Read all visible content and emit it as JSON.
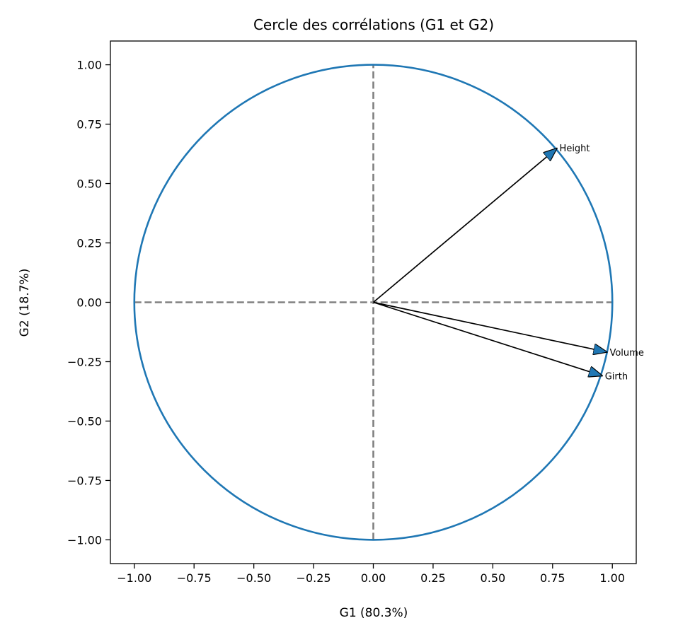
{
  "chart_data": {
    "type": "scatter",
    "title": "Cercle des corrélations (G1 et G2)",
    "xlabel": "G1 (80.3%)",
    "ylabel": "G2 (18.7%)",
    "xlim": [
      -1.1,
      1.1
    ],
    "ylim": [
      -1.1,
      1.1
    ],
    "xticks": [
      "−1.00",
      "−0.75",
      "−0.50",
      "−0.25",
      "0.00",
      "0.25",
      "0.50",
      "0.75",
      "1.00"
    ],
    "yticks": [
      "−1.00",
      "−0.75",
      "−0.50",
      "−0.25",
      "0.00",
      "0.25",
      "0.50",
      "0.75",
      "1.00"
    ],
    "tick_values": [
      -1.0,
      -0.75,
      -0.5,
      -0.25,
      0.0,
      0.25,
      0.5,
      0.75,
      1.0
    ],
    "circle": {
      "center": [
        0,
        0
      ],
      "radius": 1.0,
      "color": "#1f77b4"
    },
    "reference_lines": {
      "x": 0,
      "y": 0,
      "style": "dashed",
      "color": "#808080"
    },
    "arrows": [
      {
        "name": "Height",
        "x": 0.77,
        "y": 0.65
      },
      {
        "name": "Volume",
        "x": 0.98,
        "y": -0.21
      },
      {
        "name": "Girth",
        "x": 0.96,
        "y": -0.31
      }
    ],
    "arrow_color": "#000000",
    "arrow_head_fill": "#1f77b4",
    "grid": false
  }
}
